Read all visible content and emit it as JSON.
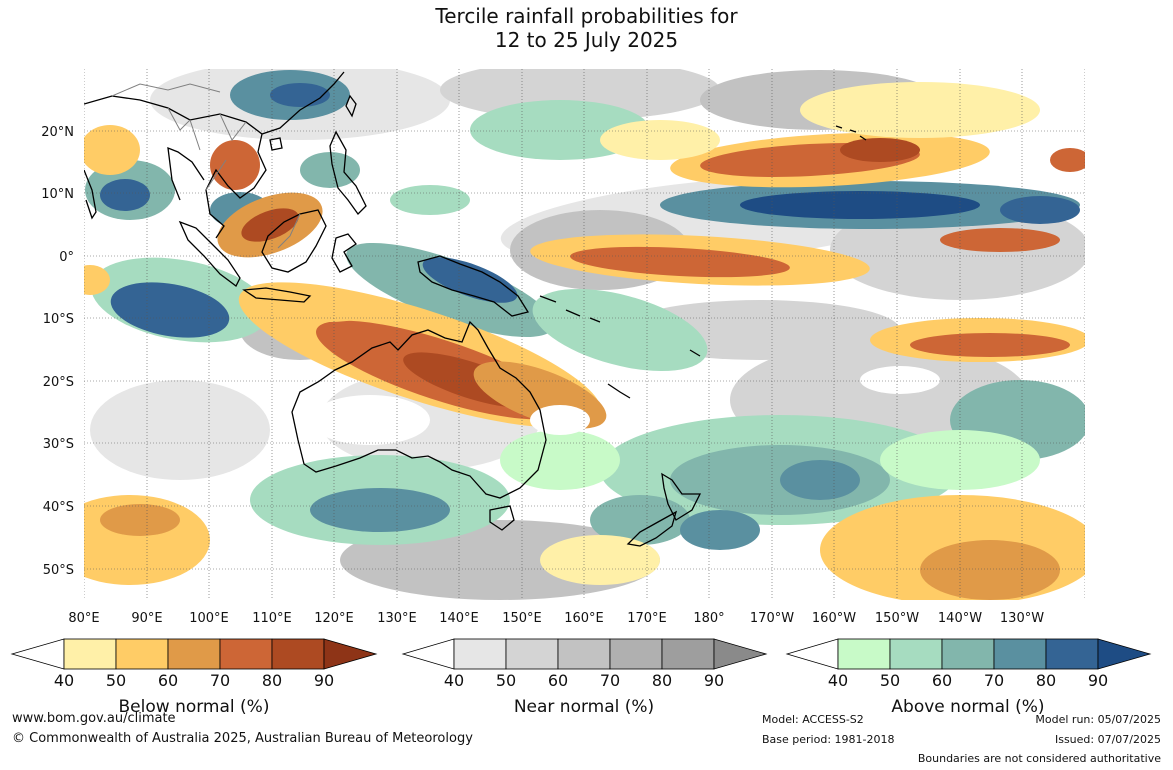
{
  "title": {
    "line1": "Tercile rainfall probabilities for",
    "line2": "12 to 25 July 2025"
  },
  "map": {
    "lat_labels": [
      "20°N",
      "10°N",
      "0°",
      "10°S",
      "20°S",
      "30°S",
      "40°S",
      "50°S"
    ],
    "lon_labels": [
      "80°E",
      "90°E",
      "100°E",
      "110°E",
      "120°E",
      "130°E",
      "140°E",
      "150°E",
      "160°E",
      "170°E",
      "180°",
      "170°W",
      "160°W",
      "150°W",
      "140°W",
      "130°W"
    ],
    "colors": {
      "below": [
        "#fff0a8",
        "#ffcc66",
        "#e09a48",
        "#cd6636",
        "#ad4a22",
        "#8e3417"
      ],
      "near": [
        "#e6e6e6",
        "#d4d4d4",
        "#c2c2c2",
        "#b0b0b0",
        "#9e9e9e",
        "#8a8a8a"
      ],
      "above": [
        "#c8fac8",
        "#a6dcc0",
        "#82b6ac",
        "#5a90a0",
        "#346494",
        "#1e4c84"
      ],
      "coast": "#000000",
      "border": "#808080"
    }
  },
  "colorbars": [
    {
      "title": "Below normal (%)",
      "ticks": [
        "40",
        "50",
        "60",
        "70",
        "80",
        "90"
      ]
    },
    {
      "title": "Near normal (%)",
      "ticks": [
        "40",
        "50",
        "60",
        "70",
        "80",
        "90"
      ]
    },
    {
      "title": "Above normal (%)",
      "ticks": [
        "40",
        "50",
        "60",
        "70",
        "80",
        "90"
      ]
    }
  ],
  "footer": {
    "website": "www.bom.gov.au/climate",
    "copyright": "© Commonwealth of Australia 2025, Australian Bureau of Meteorology",
    "model": "Model: ACCESS-S2",
    "base_period": "Base period: 1981-2018",
    "model_run": "Model run: 05/07/2025",
    "issued": "Issued: 07/07/2025",
    "boundaries": "Boundaries are not considered authoritative"
  }
}
